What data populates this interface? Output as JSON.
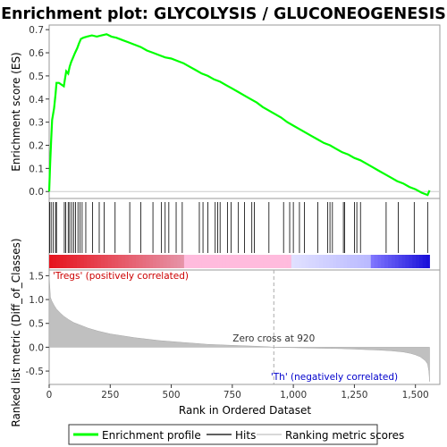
{
  "chart_data": {
    "type": "line",
    "title": "Enrichment plot: GLYCOLYSIS / GLUCONEOGENESIS",
    "xlabel": "Rank in Ordered Dataset",
    "es_panel": {
      "ylabel": "Enrichment score (ES)",
      "ylim": [
        -0.03,
        0.72
      ],
      "yticks": [
        "0.0",
        "0.1",
        "0.2",
        "0.3",
        "0.4",
        "0.5",
        "0.6",
        "0.7"
      ],
      "ytick_values": [
        0.0,
        0.1,
        0.2,
        0.3,
        0.4,
        0.5,
        0.6,
        0.7
      ],
      "series": [
        {
          "name": "Enrichment profile",
          "color": "#00ff00",
          "x": [
            0,
            4,
            8,
            12,
            20,
            26,
            30,
            40,
            60,
            65,
            70,
            78,
            84,
            90,
            98,
            106,
            115,
            122,
            130,
            140,
            155,
            175,
            195,
            215,
            235,
            255,
            275,
            300,
            325,
            350,
            375,
            400,
            425,
            450,
            475,
            500,
            525,
            550,
            575,
            600,
            625,
            650,
            675,
            700,
            725,
            750,
            775,
            800,
            825,
            850,
            875,
            900,
            925,
            950,
            975,
            1000,
            1025,
            1050,
            1075,
            1100,
            1125,
            1150,
            1175,
            1200,
            1225,
            1250,
            1275,
            1300,
            1325,
            1350,
            1375,
            1400,
            1425,
            1450,
            1475,
            1500,
            1525,
            1550,
            1558
          ],
          "y": [
            0.0,
            0.12,
            0.22,
            0.31,
            0.36,
            0.42,
            0.47,
            0.47,
            0.455,
            0.49,
            0.52,
            0.51,
            0.54,
            0.56,
            0.58,
            0.6,
            0.62,
            0.64,
            0.66,
            0.665,
            0.67,
            0.675,
            0.67,
            0.675,
            0.68,
            0.67,
            0.665,
            0.655,
            0.645,
            0.635,
            0.625,
            0.61,
            0.6,
            0.59,
            0.58,
            0.575,
            0.565,
            0.555,
            0.54,
            0.525,
            0.51,
            0.5,
            0.485,
            0.475,
            0.46,
            0.445,
            0.43,
            0.415,
            0.4,
            0.385,
            0.365,
            0.35,
            0.335,
            0.32,
            0.3,
            0.285,
            0.27,
            0.255,
            0.24,
            0.225,
            0.21,
            0.2,
            0.185,
            0.17,
            0.16,
            0.145,
            0.135,
            0.12,
            0.105,
            0.09,
            0.075,
            0.06,
            0.045,
            0.035,
            0.02,
            0.01,
            -0.005,
            -0.015,
            0.005
          ]
        }
      ]
    },
    "hits_panel": {
      "hit_ranks": [
        2,
        8,
        16,
        26,
        30,
        62,
        68,
        78,
        84,
        92,
        100,
        108,
        118,
        126,
        135,
        150,
        178,
        205,
        225,
        270,
        330,
        375,
        425,
        460,
        475,
        490,
        520,
        545,
        615,
        630,
        650,
        680,
        690,
        700,
        730,
        745,
        775,
        800,
        830,
        840,
        900,
        960,
        985,
        1000,
        1025,
        1045,
        1100,
        1140,
        1150,
        1160,
        1205,
        1210,
        1250,
        1260,
        1275,
        1380,
        1430,
        1495,
        1550
      ]
    },
    "metric_panel": {
      "ylabel": "Ranked list metric (Diff_of_Classes)",
      "ylim": [
        -0.78,
        1.62
      ],
      "yticks": [
        "-0.5",
        "0.0",
        "0.5",
        "1.0",
        "1.5"
      ],
      "ytick_values": [
        -0.5,
        0.0,
        0.5,
        1.0,
        1.5
      ],
      "x": [
        0,
        5,
        10,
        20,
        30,
        45,
        60,
        80,
        100,
        130,
        160,
        200,
        250,
        300,
        350,
        400,
        450,
        500,
        550,
        600,
        650,
        700,
        750,
        800,
        850,
        900,
        920,
        950,
        1000,
        1050,
        1100,
        1150,
        1200,
        1250,
        1300,
        1350,
        1400,
        1450,
        1480,
        1500,
        1520,
        1540,
        1550,
        1555,
        1558
      ],
      "values": [
        1.5,
        1.05,
        0.98,
        0.88,
        0.8,
        0.72,
        0.65,
        0.58,
        0.52,
        0.46,
        0.4,
        0.34,
        0.28,
        0.24,
        0.2,
        0.17,
        0.14,
        0.12,
        0.1,
        0.08,
        0.06,
        0.05,
        0.04,
        0.03,
        0.02,
        0.01,
        0.0,
        -0.005,
        -0.01,
        -0.015,
        -0.02,
        -0.025,
        -0.03,
        -0.04,
        -0.05,
        -0.06,
        -0.075,
        -0.1,
        -0.13,
        -0.16,
        -0.2,
        -0.28,
        -0.35,
        -0.5,
        -0.72
      ],
      "zero_cross_label": "Zero cross at 920",
      "zero_cross_rank": 920,
      "pos_label": "'Tregs' (positively correlated)",
      "neg_label": "'Th' (negatively correlated)"
    },
    "xlim": [
      0,
      1600
    ],
    "xticks": [
      "0",
      "250",
      "500",
      "750",
      "1,000",
      "1,250",
      "1,500"
    ],
    "xtick_values": [
      0,
      250,
      500,
      750,
      1000,
      1250,
      1500
    ],
    "legend": {
      "placement": "bottom",
      "items": [
        {
          "label": "Enrichment profile",
          "color": "#00ff00"
        },
        {
          "label": "Hits",
          "color": "#000000"
        },
        {
          "label": "Ranking metric scores",
          "color": "#c0c0c0"
        }
      ]
    }
  }
}
